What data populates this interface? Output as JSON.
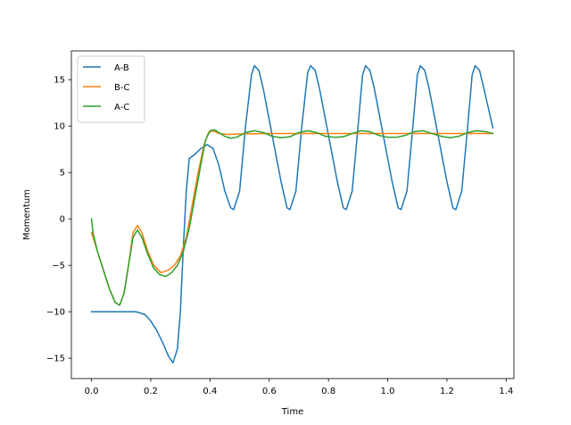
{
  "chart_data": {
    "type": "line",
    "xlabel": "Time",
    "ylabel": "Momentum",
    "xlim": [
      -0.068,
      1.426
    ],
    "ylim": [
      -17.2,
      18.1
    ],
    "xticks": [
      0.0,
      0.2,
      0.4,
      0.6,
      0.8,
      1.0,
      1.2,
      1.4
    ],
    "xtick_labels": [
      "0.0",
      "0.2",
      "0.4",
      "0.6",
      "0.8",
      "1.0",
      "1.2",
      "1.4"
    ],
    "yticks": [
      -15,
      -10,
      -5,
      0,
      5,
      10,
      15
    ],
    "ytick_labels": [
      "−15",
      "−10",
      "−5",
      "0",
      "5",
      "10",
      "15"
    ],
    "grid": false,
    "legend_position": "top-left",
    "series": [
      {
        "name": "A-B",
        "color": "#1f77b4",
        "points": [
          [
            0.0,
            -10.0
          ],
          [
            0.05,
            -10.0
          ],
          [
            0.1,
            -10.0
          ],
          [
            0.15,
            -10.0
          ],
          [
            0.18,
            -10.3
          ],
          [
            0.2,
            -11.0
          ],
          [
            0.22,
            -12.0
          ],
          [
            0.24,
            -13.3
          ],
          [
            0.26,
            -14.8
          ],
          [
            0.275,
            -15.5
          ],
          [
            0.29,
            -14.0
          ],
          [
            0.3,
            -10.0
          ],
          [
            0.31,
            -3.0
          ],
          [
            0.32,
            3.0
          ],
          [
            0.33,
            6.5
          ],
          [
            0.35,
            7.0
          ],
          [
            0.37,
            7.6
          ],
          [
            0.39,
            8.0
          ],
          [
            0.41,
            7.6
          ],
          [
            0.43,
            5.8
          ],
          [
            0.45,
            3.0
          ],
          [
            0.47,
            1.2
          ],
          [
            0.48,
            1.0
          ],
          [
            0.5,
            3.0
          ],
          [
            0.52,
            10.0
          ],
          [
            0.54,
            15.5
          ],
          [
            0.55,
            16.5
          ],
          [
            0.565,
            16.0
          ],
          [
            0.58,
            14.0
          ],
          [
            0.61,
            9.0
          ],
          [
            0.64,
            4.0
          ],
          [
            0.66,
            1.2
          ],
          [
            0.67,
            1.0
          ],
          [
            0.69,
            3.0
          ],
          [
            0.71,
            10.0
          ],
          [
            0.73,
            15.8
          ],
          [
            0.74,
            16.5
          ],
          [
            0.755,
            16.0
          ],
          [
            0.77,
            14.0
          ],
          [
            0.8,
            9.0
          ],
          [
            0.83,
            4.0
          ],
          [
            0.85,
            1.2
          ],
          [
            0.86,
            1.0
          ],
          [
            0.88,
            3.0
          ],
          [
            0.9,
            10.0
          ],
          [
            0.915,
            15.5
          ],
          [
            0.925,
            16.5
          ],
          [
            0.94,
            16.0
          ],
          [
            0.955,
            14.0
          ],
          [
            0.985,
            9.0
          ],
          [
            1.015,
            4.0
          ],
          [
            1.035,
            1.2
          ],
          [
            1.045,
            1.0
          ],
          [
            1.065,
            3.0
          ],
          [
            1.085,
            10.0
          ],
          [
            1.1,
            15.5
          ],
          [
            1.11,
            16.5
          ],
          [
            1.125,
            16.0
          ],
          [
            1.14,
            14.0
          ],
          [
            1.17,
            9.0
          ],
          [
            1.2,
            4.0
          ],
          [
            1.22,
            1.2
          ],
          [
            1.23,
            1.0
          ],
          [
            1.25,
            3.0
          ],
          [
            1.27,
            10.0
          ],
          [
            1.285,
            15.5
          ],
          [
            1.295,
            16.5
          ],
          [
            1.31,
            16.0
          ],
          [
            1.325,
            14.0
          ],
          [
            1.355,
            9.8
          ]
        ]
      },
      {
        "name": "B-C",
        "color": "#ff7f0e",
        "points": [
          [
            0.0,
            -1.5
          ],
          [
            0.02,
            -3.5
          ],
          [
            0.04,
            -5.5
          ],
          [
            0.06,
            -7.5
          ],
          [
            0.08,
            -9.0
          ],
          [
            0.095,
            -9.3
          ],
          [
            0.11,
            -8.0
          ],
          [
            0.125,
            -5.0
          ],
          [
            0.14,
            -1.5
          ],
          [
            0.155,
            -0.7
          ],
          [
            0.17,
            -1.5
          ],
          [
            0.19,
            -3.5
          ],
          [
            0.21,
            -5.0
          ],
          [
            0.235,
            -5.8
          ],
          [
            0.26,
            -5.5
          ],
          [
            0.28,
            -5.0
          ],
          [
            0.3,
            -4.0
          ],
          [
            0.32,
            -2.0
          ],
          [
            0.34,
            1.5
          ],
          [
            0.36,
            5.0
          ],
          [
            0.38,
            8.0
          ],
          [
            0.395,
            9.3
          ],
          [
            0.41,
            9.5
          ],
          [
            0.43,
            9.2
          ],
          [
            0.46,
            9.1
          ],
          [
            0.5,
            9.15
          ],
          [
            0.6,
            9.2
          ],
          [
            0.7,
            9.2
          ],
          [
            0.8,
            9.2
          ],
          [
            0.9,
            9.2
          ],
          [
            1.0,
            9.2
          ],
          [
            1.1,
            9.2
          ],
          [
            1.2,
            9.2
          ],
          [
            1.3,
            9.2
          ],
          [
            1.355,
            9.2
          ]
        ]
      },
      {
        "name": "A-C",
        "color": "#2ca02c",
        "points": [
          [
            0.0,
            0.0
          ],
          [
            0.005,
            -1.5
          ],
          [
            0.02,
            -3.5
          ],
          [
            0.04,
            -5.5
          ],
          [
            0.06,
            -7.5
          ],
          [
            0.08,
            -9.0
          ],
          [
            0.095,
            -9.3
          ],
          [
            0.11,
            -8.0
          ],
          [
            0.125,
            -5.0
          ],
          [
            0.14,
            -2.0
          ],
          [
            0.155,
            -1.2
          ],
          [
            0.17,
            -2.0
          ],
          [
            0.19,
            -3.8
          ],
          [
            0.21,
            -5.3
          ],
          [
            0.23,
            -6.0
          ],
          [
            0.25,
            -6.2
          ],
          [
            0.27,
            -5.8
          ],
          [
            0.29,
            -5.0
          ],
          [
            0.31,
            -3.5
          ],
          [
            0.33,
            -1.0
          ],
          [
            0.35,
            2.5
          ],
          [
            0.37,
            6.0
          ],
          [
            0.385,
            8.5
          ],
          [
            0.4,
            9.5
          ],
          [
            0.415,
            9.6
          ],
          [
            0.43,
            9.3
          ],
          [
            0.45,
            8.9
          ],
          [
            0.47,
            8.7
          ],
          [
            0.49,
            8.8
          ],
          [
            0.52,
            9.3
          ],
          [
            0.55,
            9.5
          ],
          [
            0.58,
            9.3
          ],
          [
            0.61,
            8.9
          ],
          [
            0.64,
            8.75
          ],
          [
            0.67,
            8.85
          ],
          [
            0.7,
            9.3
          ],
          [
            0.73,
            9.5
          ],
          [
            0.76,
            9.3
          ],
          [
            0.79,
            8.9
          ],
          [
            0.82,
            8.8
          ],
          [
            0.85,
            8.85
          ],
          [
            0.88,
            9.2
          ],
          [
            0.91,
            9.5
          ],
          [
            0.94,
            9.4
          ],
          [
            0.97,
            9.0
          ],
          [
            1.0,
            8.8
          ],
          [
            1.03,
            8.8
          ],
          [
            1.06,
            9.0
          ],
          [
            1.09,
            9.4
          ],
          [
            1.12,
            9.5
          ],
          [
            1.15,
            9.2
          ],
          [
            1.18,
            8.9
          ],
          [
            1.21,
            8.75
          ],
          [
            1.24,
            8.9
          ],
          [
            1.27,
            9.3
          ],
          [
            1.3,
            9.5
          ],
          [
            1.33,
            9.4
          ],
          [
            1.355,
            9.2
          ]
        ]
      }
    ]
  }
}
